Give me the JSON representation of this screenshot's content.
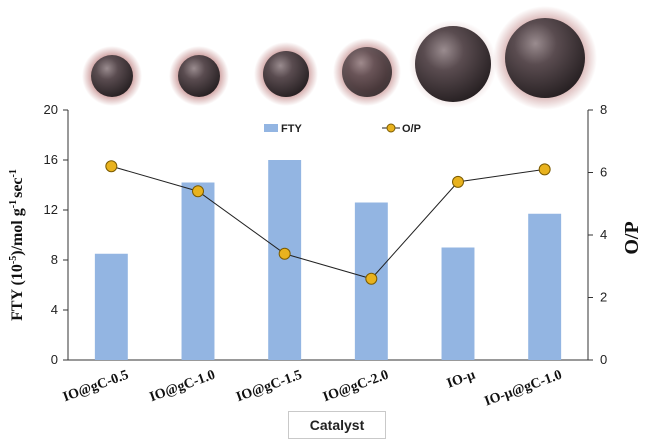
{
  "chart_data": {
    "type": "bar",
    "categories": [
      "IO@gC-0.5",
      "IO@gC-1.0",
      "IO@gC-1.5",
      "IO@gC-2.0",
      "IO-μ",
      "IO-μ@gC-1.0"
    ],
    "series": [
      {
        "name": "FTY",
        "type": "bar",
        "axis": "left",
        "values": [
          8.5,
          14.2,
          16.0,
          12.6,
          9.0,
          11.7
        ]
      },
      {
        "name": "O/P",
        "type": "line",
        "axis": "right",
        "values": [
          6.2,
          5.4,
          3.4,
          2.6,
          5.7,
          6.1
        ]
      }
    ],
    "xlabel": "Catalyst",
    "ylabel_left": "FTY (10",
    "ylabel_left_sup1": "-5",
    "ylabel_left_mid": ")/mol g",
    "ylabel_left_sup2": "-1",
    "ylabel_left_end": "sec",
    "ylabel_left_sup3": "-1",
    "ylabel_right": "O/P",
    "ylim_left": [
      0,
      20
    ],
    "ylim_right": [
      0,
      8
    ],
    "yticks_left": [
      0,
      4,
      8,
      12,
      16,
      20
    ],
    "yticks_right": [
      0,
      2,
      4,
      6,
      8
    ],
    "legend_placement": "top",
    "grid": false,
    "colors": {
      "bar": "#93b5e2",
      "marker_fill": "#e8b21e",
      "marker_stroke": "#7a5a00",
      "line": "#222222"
    }
  }
}
